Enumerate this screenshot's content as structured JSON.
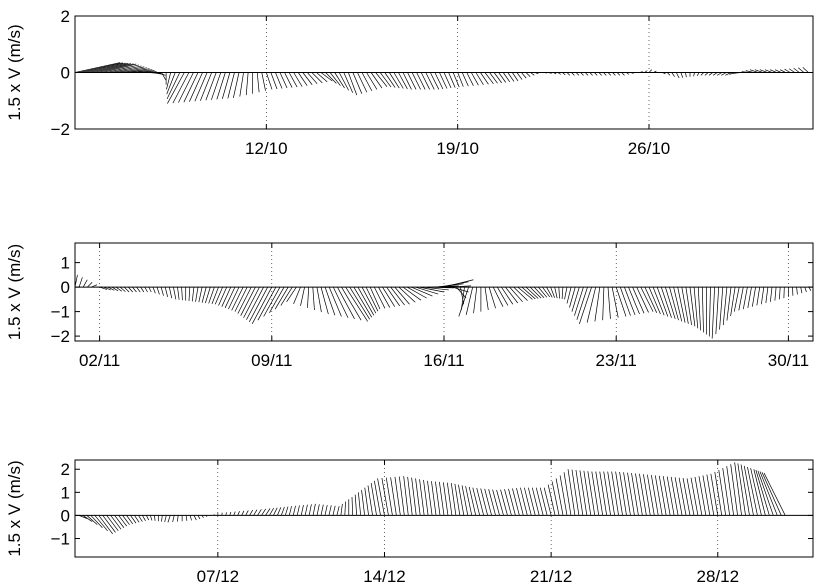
{
  "chart_data": [
    {
      "type": "line",
      "subtype": "stick-vector-plot",
      "title": "",
      "xlabel": "",
      "ylabel": "1.5 x V (m/s)",
      "ylim": [
        -2,
        2
      ],
      "yticks": [
        -2,
        0,
        2
      ],
      "xlim": [
        "05/10",
        "01/11"
      ],
      "xticks": [
        "12/10",
        "19/10",
        "26/10"
      ],
      "grid": "x-dotted",
      "series": [
        {
          "x": [
            "05/10",
            "06/10",
            "07/10",
            "08/10",
            "09/10",
            "10/10",
            "11/10",
            "12/10",
            "13/10",
            "14/10",
            "15/10",
            "16/10",
            "17/10",
            "18/10",
            "19/10",
            "20/10",
            "21/10",
            "22/10",
            "23/10",
            "24/10",
            "25/10",
            "26/10",
            "27/10",
            "28/10",
            "29/10",
            "30/10",
            "31/10",
            "01/11"
          ],
          "u": [
            1.6,
            1.2,
            0.8,
            0.3,
            -0.6,
            -0.4,
            -0.2,
            0.2,
            0.3,
            0.4,
            0.3,
            0.4,
            0.3,
            0.3,
            0.2,
            0.3,
            0.2,
            0.1,
            0.1,
            0.1,
            0.1,
            0.1,
            0.1,
            -0.1,
            -0.2,
            -0.3,
            -0.2,
            -0.2
          ],
          "v": [
            0.35,
            0.3,
            0.1,
            -0.1,
            -1.1,
            -1.0,
            -0.9,
            -0.6,
            -0.5,
            -0.3,
            -0.8,
            -0.5,
            -0.6,
            -0.6,
            -0.5,
            -0.4,
            -0.3,
            0.0,
            -0.1,
            -0.1,
            -0.1,
            0.1,
            -0.2,
            -0.1,
            -0.1,
            0.1,
            0.1,
            0.2
          ]
        }
      ]
    },
    {
      "type": "line",
      "subtype": "stick-vector-plot",
      "title": "",
      "xlabel": "",
      "ylabel": "1.5 x V (m/s)",
      "ylim": [
        -2.2,
        1.8
      ],
      "yticks": [
        -2,
        -1,
        0,
        1
      ],
      "xlim": [
        "01/11",
        "01/12"
      ],
      "xticks": [
        "02/11",
        "09/11",
        "16/11",
        "23/11",
        "30/11"
      ],
      "grid": "x-dotted",
      "series": [
        {
          "x": [
            "01/11",
            "02/11",
            "03/11",
            "04/11",
            "05/11",
            "06/11",
            "07/11",
            "08/11",
            "09/11",
            "10/11",
            "11/11",
            "12/11",
            "13/11",
            "14/11",
            "15/11",
            "16/11",
            "17/11",
            "18/11",
            "19/11",
            "20/11",
            "21/11",
            "22/11",
            "23/11",
            "24/11",
            "25/11",
            "26/11",
            "27/11",
            "28/11",
            "29/11",
            "30/11",
            "01/12"
          ],
          "u": [
            0.1,
            0.3,
            0.2,
            0.1,
            0.1,
            -0.1,
            -0.3,
            -0.5,
            -0.8,
            -0.4,
            0.3,
            0.9,
            0.4,
            0.6,
            1.0,
            1.2,
            -0.4,
            0.4,
            0.6,
            0.3,
            -0.1,
            -0.5,
            0.4,
            0.5,
            0.4,
            0.2,
            -0.1,
            -0.2,
            -0.1,
            0.0,
            0.1
          ],
          "v": [
            0.5,
            -0.1,
            -0.2,
            -0.2,
            -0.5,
            -0.6,
            -0.7,
            -1.0,
            -1.5,
            -0.6,
            -1.1,
            -1.4,
            -0.9,
            -0.7,
            -0.2,
            0.3,
            -1.2,
            -0.8,
            -0.5,
            -0.4,
            -0.5,
            -1.5,
            -1.2,
            -1.0,
            -1.3,
            -1.6,
            -2.1,
            -1.0,
            -0.7,
            -0.4,
            -0.1
          ]
        }
      ]
    },
    {
      "type": "line",
      "subtype": "stick-vector-plot",
      "title": "",
      "xlabel": "",
      "ylabel": "1.5 x V (m/s)",
      "ylim": [
        -1.8,
        2.4
      ],
      "yticks": [
        -1,
        0,
        1,
        2
      ],
      "xlim": [
        "01/12",
        "01/01"
      ],
      "xticks": [
        "07/12",
        "14/12",
        "21/12",
        "28/12"
      ],
      "grid": "x-dotted",
      "series": [
        {
          "x": [
            "01/12",
            "02/12",
            "03/12",
            "04/12",
            "05/12",
            "06/12",
            "07/12",
            "08/12",
            "09/12",
            "10/12",
            "11/12",
            "12/12",
            "13/12",
            "14/12",
            "15/12",
            "16/12",
            "17/12",
            "18/12",
            "19/12",
            "20/12",
            "21/12",
            "22/12",
            "23/12",
            "24/12",
            "25/12",
            "26/12",
            "27/12",
            "28/12",
            "29/12",
            "30/12",
            "31/12"
          ],
          "u": [
            0.3,
            0.6,
            0.3,
            0.1,
            -0.1,
            0.1,
            0.0,
            0.1,
            0.2,
            0.1,
            0.1,
            0.1,
            -0.1,
            -0.3,
            -0.2,
            -0.2,
            -0.2,
            -0.3,
            -0.3,
            -0.3,
            -0.3,
            -0.3,
            -0.3,
            -0.3,
            -0.3,
            -0.3,
            -0.3,
            -0.3,
            -0.3,
            -0.5,
            -1.0
          ],
          "v": [
            0.0,
            -0.8,
            -0.4,
            -0.2,
            -0.3,
            -0.2,
            0.1,
            0.2,
            0.3,
            0.4,
            0.5,
            0.4,
            1.0,
            1.6,
            1.7,
            1.5,
            1.4,
            1.2,
            1.1,
            1.2,
            1.2,
            2.0,
            1.9,
            1.9,
            1.8,
            1.7,
            1.6,
            1.8,
            2.3,
            2.0,
            1.8
          ]
        }
      ]
    }
  ]
}
